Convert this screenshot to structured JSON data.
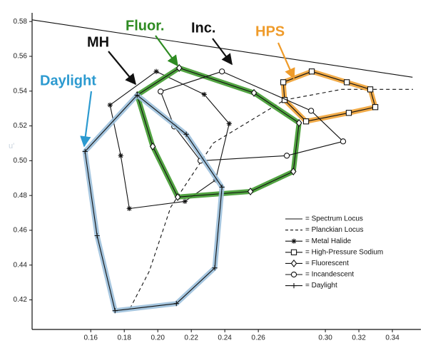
{
  "chart_data": {
    "type": "polygon",
    "y_label": "u'",
    "xlim": [
      0.125,
      0.357
    ],
    "ylim": [
      0.403,
      0.585
    ],
    "xticks": [
      {
        "value": 0.16,
        "label": "0.16"
      },
      {
        "value": 0.18,
        "label": "0.18"
      },
      {
        "value": 0.2,
        "label": "0.20"
      },
      {
        "value": 0.22,
        "label": "0.22"
      },
      {
        "value": 0.24,
        "label": "0.24"
      },
      {
        "value": 0.26,
        "label": "0.26"
      },
      {
        "value": 0.3,
        "label": "0.30"
      },
      {
        "value": 0.32,
        "label": "0.32"
      },
      {
        "value": 0.34,
        "label": "0.34"
      }
    ],
    "yticks": [
      {
        "value": 0.42,
        "label": "0.42"
      },
      {
        "value": 0.44,
        "label": "0.44"
      },
      {
        "value": 0.46,
        "label": "0.46"
      },
      {
        "value": 0.48,
        "label": "0.48"
      },
      {
        "value": 0.5,
        "label": "0.50"
      },
      {
        "value": 0.52,
        "label": "0.52"
      },
      {
        "value": 0.54,
        "label": "0.54"
      },
      {
        "value": 0.56,
        "label": "0.56"
      },
      {
        "value": 0.58,
        "label": "0.58"
      }
    ],
    "legend": "lower right",
    "series": [
      {
        "name": "= Spectrum Locus",
        "color": "#111111",
        "dash": false,
        "marker": "none",
        "closed": false,
        "x": [
          0.125,
          0.352
        ],
        "values": [
          0.581,
          0.548
        ]
      },
      {
        "name": "= Planckian Locus",
        "color": "#111111",
        "dash": true,
        "marker": "none",
        "closed": false,
        "x": [
          0.1834,
          0.1949,
          0.2077,
          0.2332,
          0.2757,
          0.3098,
          0.3523
        ],
        "values": [
          0.415,
          0.4364,
          0.4733,
          0.5102,
          0.5349,
          0.541,
          0.541
        ]
      },
      {
        "name": "= Metal Halide",
        "color": "#111111",
        "dash": false,
        "marker": "asterisk",
        "closed": true,
        "x": [
          0.1715,
          0.1991,
          0.2277,
          0.2426,
          0.2345,
          0.2162,
          0.183,
          0.1779
        ],
        "values": [
          0.532,
          0.5513,
          0.5381,
          0.5213,
          0.4889,
          0.4766,
          0.4725,
          0.5029
        ]
      },
      {
        "name": "= High-Pressure Sodium",
        "color": "#111111",
        "highlight": "#f0a235",
        "dash": false,
        "marker": "square",
        "closed": true,
        "x": [
          0.2749,
          0.2919,
          0.3128,
          0.3268,
          0.3298,
          0.314,
          0.2885,
          0.2757
        ],
        "values": [
          0.5451,
          0.5513,
          0.5451,
          0.541,
          0.5308,
          0.5275,
          0.5226,
          0.5349
        ]
      },
      {
        "name": "= Fluorescent",
        "color": "#111111",
        "highlight": "#3f9a2e",
        "dash": false,
        "marker": "diamond",
        "closed": true,
        "x": [
          0.2128,
          0.2574,
          0.2843,
          0.2809,
          0.2553,
          0.2119,
          0.197,
          0.1877
        ],
        "values": [
          0.5533,
          0.539,
          0.5217,
          0.4938,
          0.4823,
          0.4791,
          0.5082,
          0.5377
        ]
      },
      {
        "name": "= Incandescent",
        "color": "#111111",
        "dash": false,
        "marker": "circle",
        "closed": true,
        "x": [
          0.2017,
          0.2383,
          0.2915,
          0.3106,
          0.277,
          0.2255,
          0.2098
        ],
        "values": [
          0.5398,
          0.5513,
          0.5287,
          0.5111,
          0.5029,
          0.5,
          0.5197
        ]
      },
      {
        "name": "= Daylight",
        "color": "#111111",
        "highlight": "#9cc0dc",
        "dash": false,
        "marker": "plus",
        "closed": true,
        "x": [
          0.1877,
          0.217,
          0.2383,
          0.234,
          0.2111,
          0.1745,
          0.1638,
          0.1566
        ],
        "values": [
          0.5377,
          0.5152,
          0.4848,
          0.4384,
          0.4179,
          0.4138,
          0.4569,
          0.5053
        ]
      }
    ],
    "annotations": [
      {
        "text": "MH",
        "color": "#111111"
      },
      {
        "text": "Fluor.",
        "color": "#2e8b22"
      },
      {
        "text": "Inc.",
        "color": "#111111"
      },
      {
        "text": "HPS",
        "color": "#ef9b2a"
      },
      {
        "text": "Daylight",
        "color": "#2c9ad0"
      }
    ]
  }
}
